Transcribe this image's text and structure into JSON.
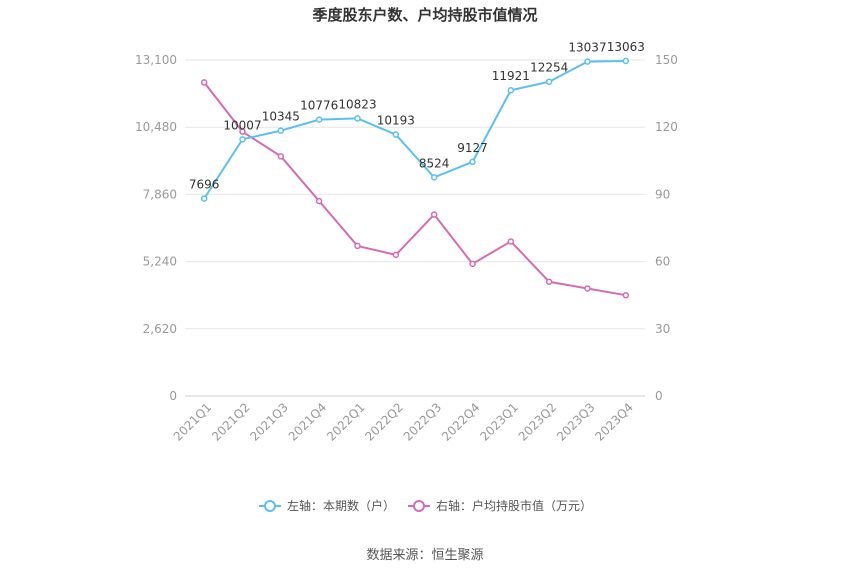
{
  "chart_data": {
    "type": "line",
    "title": "季度股东户数、户均持股市值情况",
    "categories": [
      "2021Q1",
      "2021Q2",
      "2021Q3",
      "2021Q4",
      "2022Q1",
      "2022Q2",
      "2022Q3",
      "2022Q4",
      "2023Q1",
      "2023Q2",
      "2023Q3",
      "2023Q4"
    ],
    "y_left": {
      "ticks": [
        "0",
        "2,620",
        "5,240",
        "7,860",
        "10,480",
        "13,100"
      ],
      "range": [
        0,
        13100
      ]
    },
    "y_right": {
      "ticks": [
        "0",
        "30",
        "60",
        "90",
        "120",
        "150"
      ],
      "range": [
        0,
        150
      ]
    },
    "series": [
      {
        "name": "左轴：本期数（户）",
        "axis": "left",
        "color": "#5bc0f0",
        "values": [
          7696,
          10007,
          10345,
          10776,
          10823,
          10193,
          8524,
          9127,
          11921,
          12254,
          13037,
          13063
        ],
        "labels": [
          "7696",
          "10007",
          "10345",
          "10776",
          "10823",
          "10193",
          "8524",
          "9127",
          "11921",
          "12254",
          "13037",
          "13063"
        ]
      },
      {
        "name": "右轴：户均持股市值（万元）",
        "axis": "right",
        "color": "#d66bb3",
        "values": [
          140,
          118,
          107,
          87,
          67,
          63,
          81,
          59,
          69,
          51,
          48,
          45
        ]
      }
    ],
    "grid": true,
    "legend": "bottom",
    "source": "数据来源：恒生聚源"
  }
}
